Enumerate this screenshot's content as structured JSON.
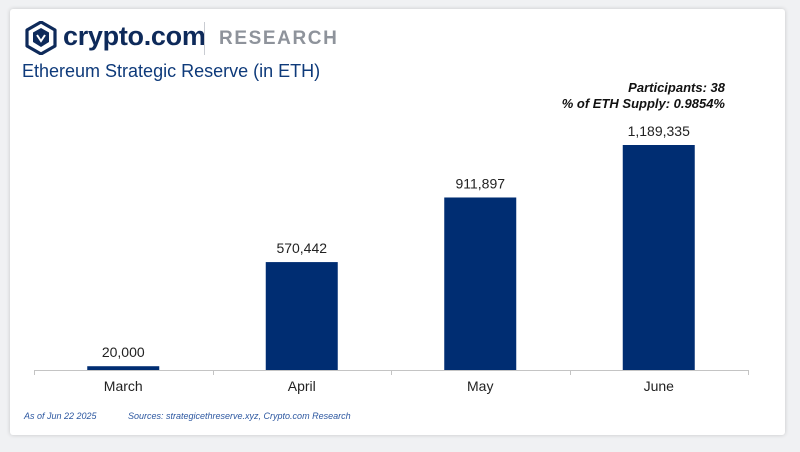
{
  "header": {
    "brand": "crypto.com",
    "section": "RESEARCH",
    "title": "Ethereum Strategic Reserve (in ETH)"
  },
  "annotation": {
    "participants": "Participants: 38",
    "supply": "% of ETH Supply: 0.9854%"
  },
  "chart_data": {
    "type": "bar",
    "title": "Ethereum Strategic Reserve (in ETH)",
    "categories": [
      "March",
      "April",
      "May",
      "June"
    ],
    "values": [
      20000,
      570442,
      911897,
      1189335
    ],
    "value_labels": [
      "20,000",
      "570,442",
      "911,897",
      "1,189,335"
    ],
    "xlabel": "",
    "ylabel": "",
    "ylim": [
      0,
      1189335
    ],
    "grid": false,
    "legend": "none",
    "bar_color": "#002d72"
  },
  "footer": {
    "date": "As of Jun 22 2025",
    "sources": "Sources: strategicethreserve.xyz, Crypto.com Research"
  },
  "colors": {
    "brand_navy": "#0e2a5a",
    "title_blue": "#0e3a7a",
    "bar": "#002d72",
    "footer_blue": "#2c57a0"
  }
}
